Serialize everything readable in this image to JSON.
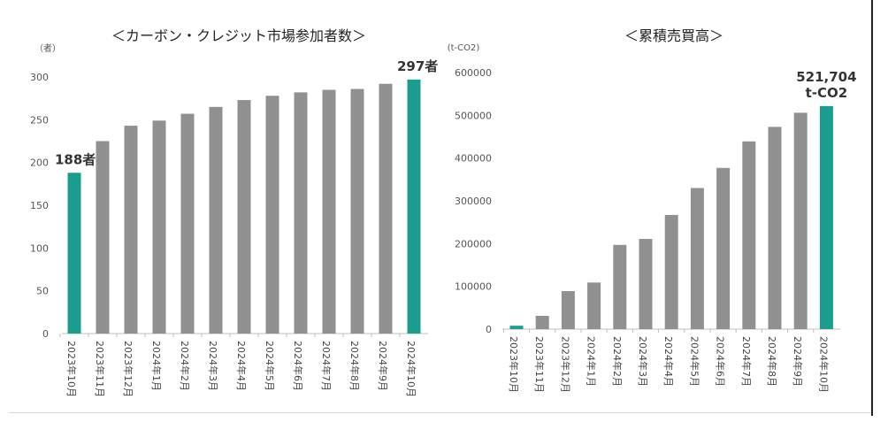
{
  "chart_data": [
    {
      "type": "bar",
      "title": "＜カーボン・クレジット市場参加者数＞",
      "ylabel": "（者）",
      "ylim": [
        0,
        300
      ],
      "yticks": [
        "0",
        "50",
        "100",
        "150",
        "200",
        "250",
        "300"
      ],
      "categories": [
        "2023年10月",
        "2023年11月",
        "2023年12月",
        "2024年1月",
        "2024年2月",
        "2024年3月",
        "2024年4月",
        "2024年5月",
        "2024年6月",
        "2024年7月",
        "2024年8月",
        "2024年9月",
        "2024年10月"
      ],
      "values": [
        188,
        225,
        243,
        249,
        257,
        265,
        273,
        278,
        282,
        285,
        286,
        292,
        297
      ],
      "highlight_indices": [
        0,
        12
      ],
      "colors": {
        "bar": "#909090",
        "highlight": "#1a9c8f"
      },
      "annotations": [
        {
          "index": 0,
          "lines": [
            "188者"
          ]
        },
        {
          "index": 12,
          "lines": [
            "297者"
          ]
        }
      ],
      "grid": false
    },
    {
      "type": "bar",
      "title": "＜累積売買高＞",
      "ylabel": "(t-CO2)",
      "ylim": [
        0,
        600000
      ],
      "yticks": [
        "0",
        "100000",
        "200000",
        "300000",
        "400000",
        "500000",
        "600000"
      ],
      "categories": [
        "2023年10月",
        "2023年11月",
        "2023年12月",
        "2024年1月",
        "2024年2月",
        "2024年3月",
        "2024年4月",
        "2024年5月",
        "2024年6月",
        "2024年7月",
        "2024年8月",
        "2024年9月",
        "2024年10月"
      ],
      "values": [
        8000,
        31000,
        89000,
        109000,
        197000,
        211000,
        267000,
        330000,
        377000,
        439000,
        473000,
        506000,
        521704
      ],
      "highlight_indices": [
        0,
        12
      ],
      "colors": {
        "bar": "#909090",
        "highlight": "#1a9c8f"
      },
      "annotations": [
        {
          "index": 12,
          "lines": [
            "521,704",
            "t-CO2"
          ]
        }
      ],
      "grid": false
    }
  ]
}
